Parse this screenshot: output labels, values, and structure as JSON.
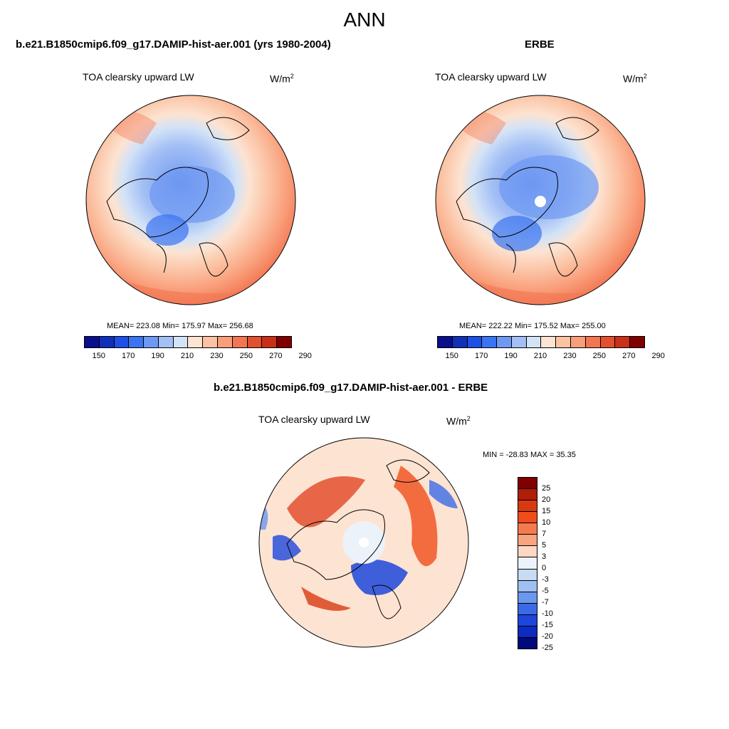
{
  "figure": {
    "title": "ANN"
  },
  "panels": [
    {
      "title": "b.e21.B1850cmip6.f09_g17.DAMIP-hist-aer.001 (yrs 1980-2004)",
      "variable": "TOA clearsky upward LW",
      "units_base": "W/m",
      "units_exp": "2",
      "stats": "MEAN= 223.08  Min= 175.97  Max= 256.68",
      "colorbar_ticks": [
        "150",
        "170",
        "190",
        "210",
        "230",
        "250",
        "270",
        "290"
      ]
    },
    {
      "title": "ERBE",
      "variable": "TOA clearsky upward LW",
      "units_base": "W/m",
      "units_exp": "2",
      "stats": "MEAN= 222.22  Min= 175.52  Max= 255.00",
      "colorbar_ticks": [
        "150",
        "170",
        "190",
        "210",
        "230",
        "250",
        "270",
        "290"
      ]
    },
    {
      "title": "b.e21.B1850cmip6.f09_g17.DAMIP-hist-aer.001 - ERBE",
      "variable": "TOA clearsky upward LW",
      "units_base": "W/m",
      "units_exp": "2",
      "stats": "MIN = -28.83 MAX =  35.35",
      "colorbar_ticks": [
        "25",
        "20",
        "15",
        "10",
        "7",
        "5",
        "3",
        "0",
        "-3",
        "-5",
        "-7",
        "-10",
        "-15",
        "-20",
        "-25"
      ]
    }
  ],
  "colors": {
    "abs_scale": [
      "#0a0f8c",
      "#1030b8",
      "#1e50e6",
      "#3a74f0",
      "#6e98f2",
      "#a3bff5",
      "#d3e3f7",
      "#fde3d1",
      "#fbc3a4",
      "#f99e7a",
      "#f27652",
      "#e3502f",
      "#c8301a",
      "#800000"
    ],
    "diff_scale": [
      "#800000",
      "#b01e08",
      "#d83a10",
      "#f04d1c",
      "#f57a50",
      "#f9a47f",
      "#fdd7c2",
      "#ecf2f9",
      "#c7dbf5",
      "#9ec0f2",
      "#6b97ed",
      "#3c6ae6",
      "#1d46dc",
      "#0d2bc0",
      "#000a7a"
    ],
    "land_outline": "#000000"
  }
}
